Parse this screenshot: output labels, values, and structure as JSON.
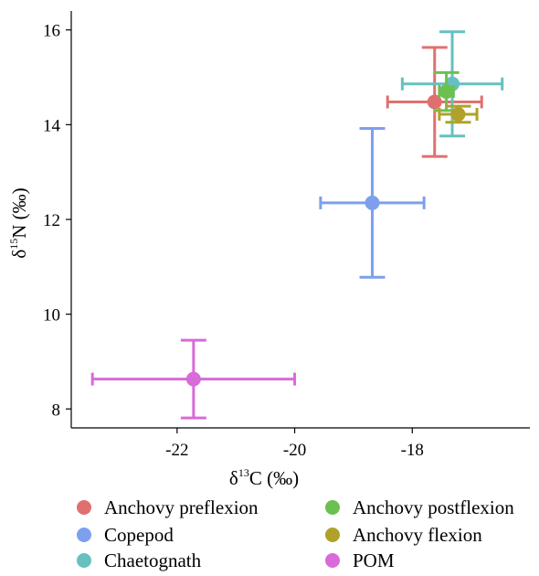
{
  "chart_data": {
    "type": "scatter",
    "error_bars": true,
    "grid": false,
    "legend_position": "bottom",
    "xlabel": {
      "prefix": "δ",
      "sup": "13",
      "rest": "C (‰)"
    },
    "ylabel": {
      "prefix": "δ",
      "sup": "15",
      "rest": "N (‰)"
    },
    "xlim": [
      -23.8,
      -16.0
    ],
    "ylim": [
      7.6,
      16.4
    ],
    "x_ticks": [
      -22,
      -20,
      -18
    ],
    "y_ticks": [
      8,
      10,
      12,
      14,
      16
    ],
    "x_tick_labels": [
      "-22",
      "-20",
      "-18"
    ],
    "y_tick_labels": [
      "8",
      "10",
      "12",
      "14",
      "16"
    ],
    "series": [
      {
        "name": "Anchovy preflexion",
        "color": "#e07070",
        "x": -17.62,
        "y": 14.48,
        "x_err": 0.8,
        "y_err": 1.15
      },
      {
        "name": "Copepod",
        "color": "#7ca0ee",
        "x": -18.68,
        "y": 12.35,
        "x_err": 0.88,
        "y_err": 1.57
      },
      {
        "name": "Chaetognath",
        "color": "#66c0c0",
        "x": -17.32,
        "y": 14.86,
        "x_err": 0.85,
        "y_err": 1.1
      },
      {
        "name": "Anchovy postflexion",
        "color": "#6cc050",
        "x": -17.42,
        "y": 14.7,
        "x_err": 0.12,
        "y_err": 0.4
      },
      {
        "name": "Anchovy flexion",
        "color": "#b0a228",
        "x": -17.22,
        "y": 14.22,
        "x_err": 0.32,
        "y_err": 0.17
      },
      {
        "name": "POM",
        "color": "#d96ad9",
        "x": -21.72,
        "y": 8.63,
        "x_err": 1.72,
        "y_err": 0.82
      }
    ]
  }
}
